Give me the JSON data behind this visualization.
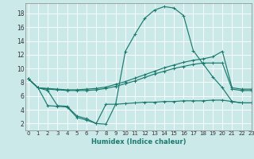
{
  "title": "",
  "xlabel": "Humidex (Indice chaleur)",
  "background_color": "#cce9e9",
  "grid_color": "#b0d8d8",
  "line_color": "#1a7a6e",
  "x_ticks": [
    0,
    1,
    2,
    3,
    4,
    5,
    6,
    7,
    8,
    9,
    10,
    11,
    12,
    13,
    14,
    15,
    16,
    17,
    18,
    19,
    20,
    21,
    22,
    23
  ],
  "y_ticks": [
    2,
    4,
    6,
    8,
    10,
    12,
    14,
    16,
    18
  ],
  "ylim": [
    1,
    19.5
  ],
  "xlim": [
    -0.3,
    23
  ],
  "series": [
    {
      "x": [
        0,
        1,
        2,
        3,
        4,
        5,
        6,
        7,
        8,
        9,
        10,
        11,
        12,
        13,
        14,
        15,
        16,
        17,
        18,
        19,
        20,
        21,
        22,
        23
      ],
      "y": [
        8.5,
        7.2,
        6.8,
        4.6,
        4.5,
        3.1,
        2.7,
        2.0,
        1.9,
        4.8,
        12.5,
        15.0,
        17.3,
        18.5,
        19.0,
        18.8,
        17.7,
        12.6,
        10.7,
        8.8,
        7.2,
        5.2,
        5.0,
        5.0
      ]
    },
    {
      "x": [
        0,
        1,
        2,
        3,
        4,
        5,
        6,
        7,
        8,
        9,
        10,
        11,
        12,
        13,
        14,
        15,
        16,
        17,
        18,
        19,
        20,
        21,
        22,
        23
      ],
      "y": [
        8.5,
        7.2,
        7.1,
        7.0,
        6.9,
        6.9,
        7.0,
        7.1,
        7.3,
        7.7,
        8.1,
        8.6,
        9.1,
        9.6,
        10.1,
        10.5,
        10.9,
        11.2,
        11.4,
        11.7,
        12.5,
        7.2,
        7.0,
        7.0
      ]
    },
    {
      "x": [
        0,
        1,
        2,
        3,
        4,
        5,
        6,
        7,
        8,
        9,
        10,
        11,
        12,
        13,
        14,
        15,
        16,
        17,
        18,
        19,
        20,
        21,
        22,
        23
      ],
      "y": [
        8.5,
        7.2,
        7.0,
        6.9,
        6.8,
        6.8,
        6.8,
        6.9,
        7.1,
        7.4,
        7.8,
        8.2,
        8.7,
        9.2,
        9.6,
        10.0,
        10.3,
        10.6,
        10.8,
        10.8,
        10.8,
        7.0,
        6.8,
        6.8
      ]
    },
    {
      "x": [
        0,
        1,
        2,
        3,
        4,
        5,
        6,
        7,
        8,
        9,
        10,
        11,
        12,
        13,
        14,
        15,
        16,
        17,
        18,
        19,
        20,
        21,
        22,
        23
      ],
      "y": [
        8.5,
        7.2,
        4.6,
        4.5,
        4.4,
        2.9,
        2.5,
        2.0,
        4.8,
        4.8,
        4.9,
        5.0,
        5.1,
        5.1,
        5.2,
        5.2,
        5.3,
        5.3,
        5.3,
        5.4,
        5.4,
        5.2,
        5.0,
        5.0
      ]
    }
  ]
}
